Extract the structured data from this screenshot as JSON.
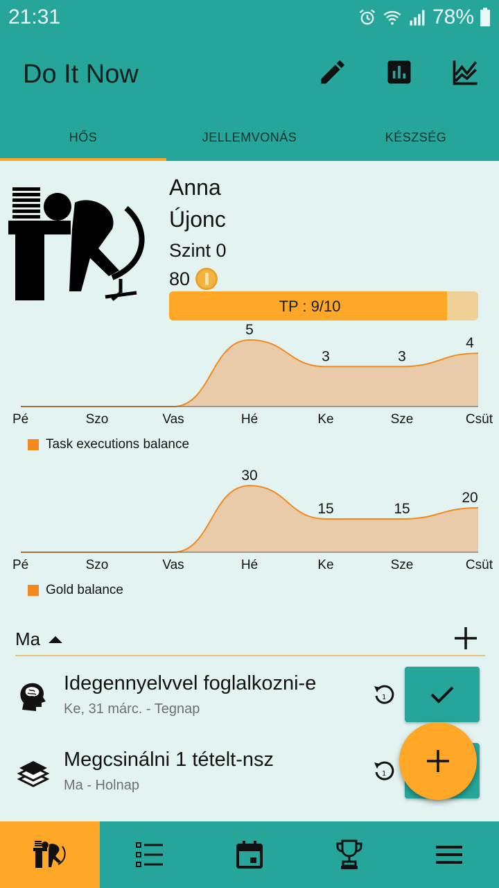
{
  "status_bar": {
    "time": "21:31",
    "battery": "78%"
  },
  "app": {
    "title": "Do It Now"
  },
  "tabs": [
    {
      "label": "HŐS",
      "active": true
    },
    {
      "label": "JELLEMVONÁS",
      "active": false
    },
    {
      "label": "KÉSZSÉG",
      "active": false
    }
  ],
  "hero": {
    "name": "Anna",
    "rank": "Újonc",
    "level": "Szint 0",
    "gold": "80",
    "tp_label": "TP : 9/10",
    "tp_fraction": 0.9
  },
  "colors": {
    "primary": "#26a69a",
    "accent": "#ffa726",
    "chart_line": "#f28a1f",
    "chart_fill": "#eac8a4"
  },
  "chart_data": [
    {
      "type": "area",
      "categories": [
        "Pé",
        "Szo",
        "Vas",
        "Hé",
        "Ke",
        "Sze",
        "Csüt"
      ],
      "series": [
        {
          "name": "Task executions balance",
          "values": [
            0,
            0,
            0,
            5,
            3,
            3,
            4
          ]
        }
      ],
      "data_labels": [
        "",
        "",
        "",
        "5",
        "3",
        "3",
        "4"
      ],
      "ylim": [
        0,
        5
      ],
      "legend": "bottom-left",
      "grid": false
    },
    {
      "type": "area",
      "categories": [
        "Pé",
        "Szo",
        "Vas",
        "Hé",
        "Ke",
        "Sze",
        "Csüt"
      ],
      "series": [
        {
          "name": "Gold balance",
          "values": [
            0,
            0,
            0,
            30,
            15,
            15,
            20
          ]
        }
      ],
      "data_labels": [
        "",
        "",
        "",
        "30",
        "15",
        "15",
        "20"
      ],
      "ylim": [
        0,
        30
      ],
      "legend": "bottom-left",
      "grid": false
    }
  ],
  "today": {
    "label": "Ma"
  },
  "tasks": [
    {
      "title": "Idegennyelvvel foglalkozni-e",
      "subtitle": "Ke, 31 márc. - Tegnap",
      "icon": "brain-head-icon"
    },
    {
      "title": "Megcsinálni 1 tételt-nsz",
      "subtitle": "Ma - Holnap",
      "icon": "books-icon"
    }
  ],
  "bottom_nav": [
    {
      "name": "hero",
      "icon": "hero-icon",
      "active": true
    },
    {
      "name": "tasks",
      "icon": "list-icon",
      "active": false
    },
    {
      "name": "calendar",
      "icon": "calendar-icon",
      "active": false
    },
    {
      "name": "rewards",
      "icon": "trophy-icon",
      "active": false
    },
    {
      "name": "menu",
      "icon": "menu-icon",
      "active": false
    }
  ]
}
